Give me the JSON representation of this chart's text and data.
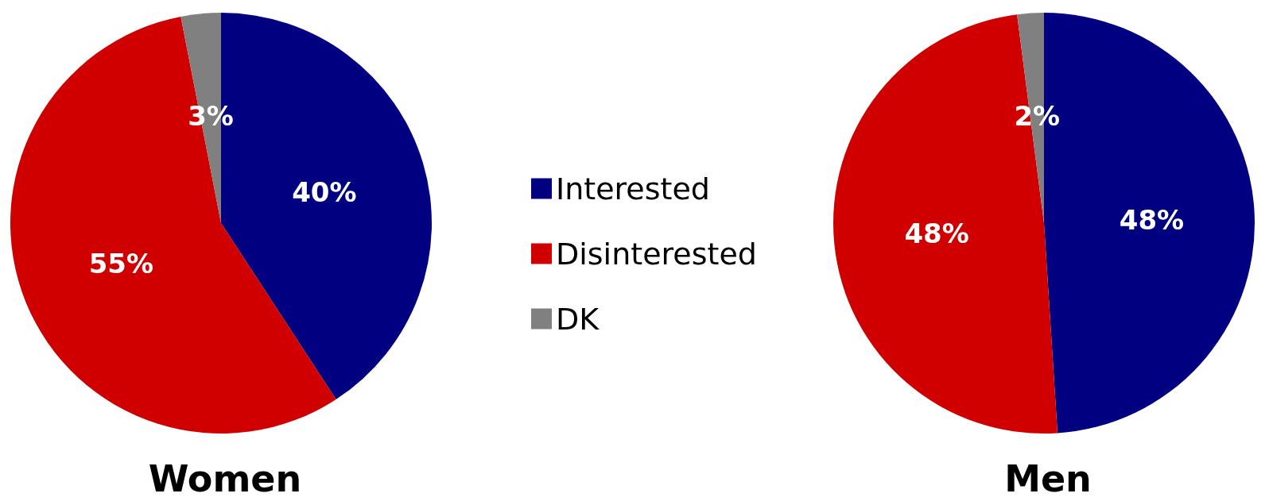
{
  "chart_data": {
    "type": "pie",
    "categories": [
      "Interested",
      "Disinterested",
      "DK"
    ],
    "colors": [
      "#000080",
      "#d00000",
      "#808080"
    ],
    "legend": "center",
    "series": [
      {
        "name": "Women",
        "values": [
          40,
          55,
          3
        ],
        "value_labels": [
          "40%",
          "55%",
          "3%"
        ]
      },
      {
        "name": "Men",
        "values": [
          48,
          48,
          2
        ],
        "value_labels": [
          "48%",
          "48%",
          "2%"
        ]
      }
    ]
  }
}
